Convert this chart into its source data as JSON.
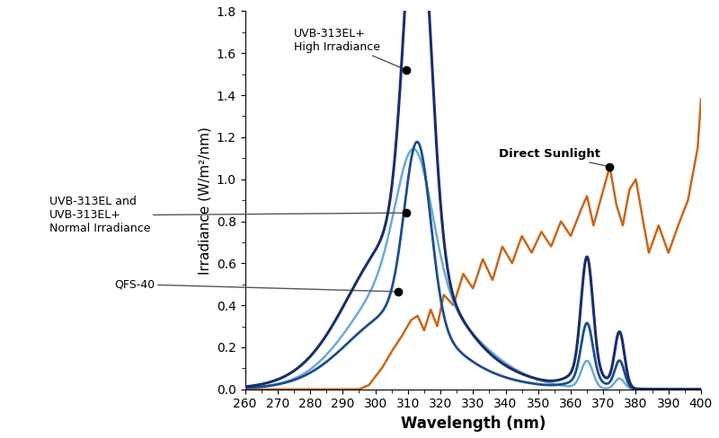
{
  "title": "",
  "xlabel": "Wavelength (nm)",
  "ylabel": "Irradiance (W/m²/nm)",
  "xlim": [
    260,
    400
  ],
  "ylim": [
    0,
    1.8
  ],
  "yticks": [
    0.0,
    0.2,
    0.4,
    0.6,
    0.8,
    1.0,
    1.2,
    1.4,
    1.6,
    1.8
  ],
  "xticks": [
    260,
    270,
    280,
    290,
    300,
    310,
    320,
    330,
    340,
    350,
    360,
    370,
    380,
    390,
    400
  ],
  "color_high": "#1a2d6b",
  "color_normal": "#1c4e8c",
  "color_qfs40": "#6aaad6",
  "color_sunlight": "#c8681a",
  "sun_x": [
    260,
    285,
    290,
    295,
    298,
    300,
    302,
    305,
    308,
    311,
    313,
    315,
    317,
    319,
    321,
    324,
    327,
    330,
    333,
    336,
    339,
    342,
    345,
    348,
    351,
    354,
    357,
    360,
    363,
    365,
    367,
    370,
    372,
    374,
    376,
    378,
    380,
    382,
    384,
    387,
    390,
    393,
    396,
    399,
    400
  ],
  "sun_y": [
    0.0,
    0.0,
    0.0,
    0.0,
    0.02,
    0.06,
    0.1,
    0.18,
    0.25,
    0.33,
    0.35,
    0.28,
    0.38,
    0.3,
    0.45,
    0.4,
    0.55,
    0.48,
    0.62,
    0.52,
    0.68,
    0.6,
    0.73,
    0.65,
    0.75,
    0.68,
    0.8,
    0.73,
    0.85,
    0.92,
    0.78,
    0.95,
    1.06,
    0.88,
    0.78,
    0.95,
    1.0,
    0.82,
    0.65,
    0.78,
    0.65,
    0.78,
    0.9,
    1.15,
    1.38
  ]
}
